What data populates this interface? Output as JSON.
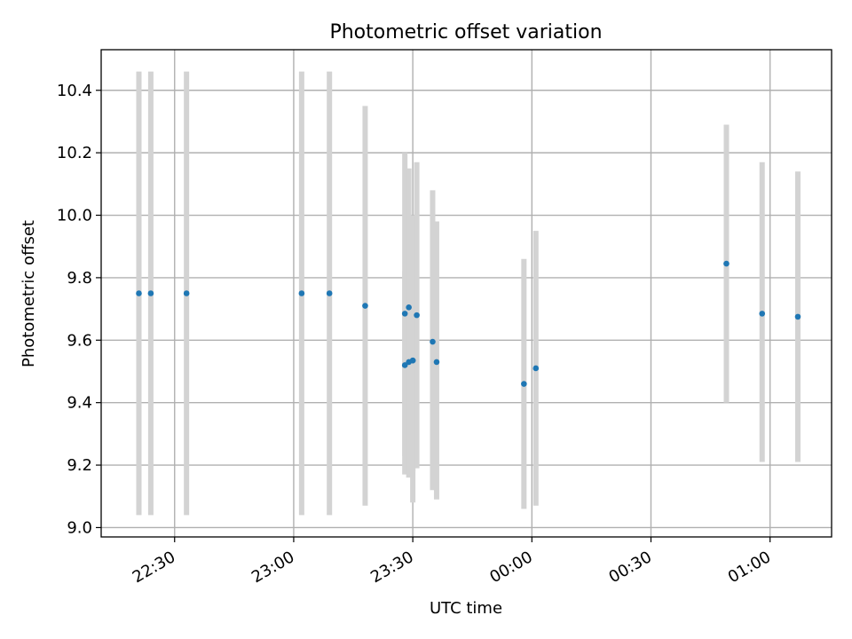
{
  "chart_data": {
    "type": "scatter",
    "title": "Photometric offset variation",
    "xlabel": "UTC time",
    "ylabel": "Photometric offset",
    "ylim": [
      8.97,
      10.53
    ],
    "xlim_minutes_from_first_tick": [
      -18.5,
      165.5
    ],
    "grid": true,
    "x_ticks": [
      "22:30",
      "23:00",
      "23:30",
      "00:00",
      "00:30",
      "01:00"
    ],
    "y_ticks": [
      "9.0",
      "9.2",
      "9.4",
      "9.6",
      "9.8",
      "10.0",
      "10.2",
      "10.4"
    ],
    "x_tick_values": [
      0,
      30,
      60,
      90,
      120,
      150
    ],
    "y_tick_values": [
      9.0,
      9.2,
      9.4,
      9.6,
      9.8,
      10.0,
      10.2,
      10.4
    ],
    "colors": {
      "point": "#1f77b4",
      "errorbar": "#d3d3d3",
      "grid": "#b0b0b0"
    },
    "points": [
      {
        "t": "22:21",
        "y": 9.75,
        "low": 9.04,
        "high": 10.46
      },
      {
        "t": "22:24",
        "y": 9.75,
        "low": 9.04,
        "high": 10.46
      },
      {
        "t": "22:33",
        "y": 9.75,
        "low": 9.04,
        "high": 10.46
      },
      {
        "t": "23:02",
        "y": 9.75,
        "low": 9.04,
        "high": 10.46
      },
      {
        "t": "23:09",
        "y": 9.75,
        "low": 9.04,
        "high": 10.46
      },
      {
        "t": "23:18",
        "y": 9.71,
        "low": 9.07,
        "high": 10.35
      },
      {
        "t": "23:28",
        "y": 9.52,
        "low": 9.23,
        "high": 9.82
      },
      {
        "t": "23:28",
        "y": 9.685,
        "low": 9.17,
        "high": 10.2
      },
      {
        "t": "23:29",
        "y": 9.705,
        "low": 9.2,
        "high": 10.15
      },
      {
        "t": "23:29",
        "y": 9.53,
        "low": 9.16,
        "high": 9.9
      },
      {
        "t": "23:30",
        "y": 9.535,
        "low": 9.18,
        "high": 9.95
      },
      {
        "t": "23:30",
        "y": 9.535,
        "low": 9.08,
        "high": 10.0
      },
      {
        "t": "23:31",
        "y": 9.68,
        "low": 9.19,
        "high": 10.17
      },
      {
        "t": "23:35",
        "y": 9.595,
        "low": 9.12,
        "high": 10.08
      },
      {
        "t": "23:36",
        "y": 9.53,
        "low": 9.09,
        "high": 9.98
      },
      {
        "t": "23:58",
        "y": 9.46,
        "low": 9.06,
        "high": 9.86
      },
      {
        "t": "00:01",
        "y": 9.51,
        "low": 9.07,
        "high": 9.95
      },
      {
        "t": "00:49",
        "y": 9.845,
        "low": 9.4,
        "high": 10.29
      },
      {
        "t": "00:58",
        "y": 9.685,
        "low": 9.21,
        "high": 10.17
      },
      {
        "t": "01:07",
        "y": 9.675,
        "low": 9.21,
        "high": 10.14
      }
    ]
  }
}
